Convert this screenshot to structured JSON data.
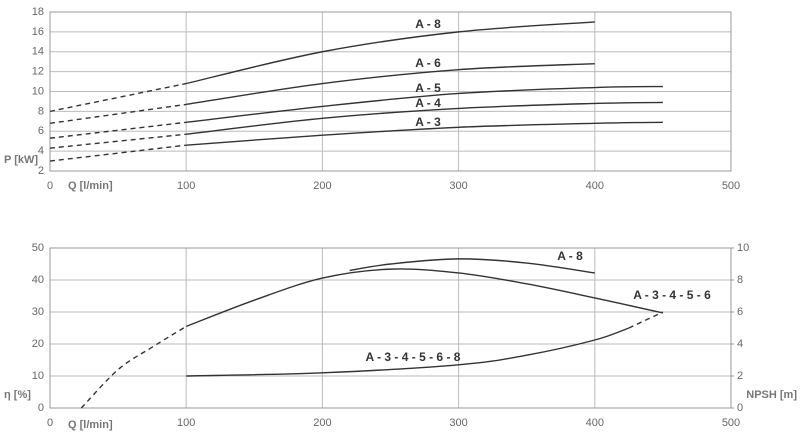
{
  "chart_data": [
    {
      "type": "line",
      "xlabel": "Q [l/min]",
      "ylabel": "P [kW]",
      "xlim": [
        0,
        500
      ],
      "xticks": [
        0,
        100,
        200,
        300,
        400,
        500
      ],
      "ylim": [
        2,
        18
      ],
      "yticks": [
        2,
        4,
        6,
        8,
        10,
        12,
        14,
        16,
        18
      ],
      "grid": true,
      "color": "#333333",
      "series": [
        {
          "dashed": true,
          "x": [
            0,
            100
          ],
          "values": [
            8.0,
            10.8
          ]
        },
        {
          "name": "A - 8",
          "x": [
            100,
            200,
            300,
            400
          ],
          "values": [
            10.8,
            14.0,
            16.0,
            17.0
          ]
        },
        {
          "dashed": true,
          "x": [
            0,
            100
          ],
          "values": [
            6.8,
            8.7
          ]
        },
        {
          "name": "A - 6",
          "x": [
            100,
            200,
            300,
            400
          ],
          "values": [
            8.7,
            10.8,
            12.2,
            12.8
          ]
        },
        {
          "dashed": true,
          "x": [
            0,
            100
          ],
          "values": [
            5.3,
            6.9
          ]
        },
        {
          "name": "A - 5",
          "x": [
            100,
            200,
            300,
            400,
            450
          ],
          "values": [
            6.9,
            8.5,
            9.8,
            10.4,
            10.5
          ]
        },
        {
          "dashed": true,
          "x": [
            0,
            100
          ],
          "values": [
            4.3,
            5.7
          ]
        },
        {
          "name": "A - 4",
          "x": [
            100,
            200,
            300,
            400,
            450
          ],
          "values": [
            5.7,
            7.3,
            8.3,
            8.8,
            8.9
          ]
        },
        {
          "dashed": true,
          "x": [
            0,
            100
          ],
          "values": [
            3.0,
            4.6
          ]
        },
        {
          "name": "A - 3",
          "x": [
            100,
            200,
            300,
            400,
            450
          ],
          "values": [
            4.6,
            5.6,
            6.4,
            6.8,
            6.9
          ]
        }
      ]
    },
    {
      "type": "line",
      "xlabel": "Q [l/min]",
      "ylabel": "η [%]",
      "y2label": "NPSH [m]",
      "xlim": [
        0,
        500
      ],
      "xticks": [
        0,
        100,
        200,
        300,
        400,
        500
      ],
      "ylim": [
        0,
        50
      ],
      "yticks": [
        0,
        10,
        20,
        30,
        40,
        50
      ],
      "y2lim": [
        0,
        10
      ],
      "y2ticks": [
        0,
        2,
        4,
        6,
        8,
        10
      ],
      "grid": true,
      "color": "#333333",
      "series": [
        {
          "dashed": true,
          "x": [
            23,
            50,
            75,
            100
          ],
          "values": [
            0,
            12,
            19,
            25.5
          ]
        },
        {
          "name": "A - 3 - 4 - 5 - 6",
          "x": [
            100,
            150,
            200,
            250,
            300,
            350,
            400,
            450
          ],
          "values": [
            25.5,
            33.7,
            40.6,
            43.4,
            42.2,
            38.8,
            34.4,
            29.7
          ]
        },
        {
          "name": "A - 8",
          "x": [
            220,
            250,
            300,
            350,
            400
          ],
          "values": [
            43,
            45,
            46.6,
            45.3,
            42.2
          ]
        },
        {
          "name": "A - 3 - 4 - 5 - 6 - 8",
          "axis": "y2",
          "x": [
            100,
            200,
            300,
            350,
            400,
            425
          ],
          "values": [
            2.0,
            2.2,
            2.7,
            3.3,
            4.25,
            5.0
          ]
        },
        {
          "dashed": true,
          "axis": "y2",
          "x": [
            425,
            450
          ],
          "values": [
            5.0,
            6.0
          ]
        }
      ]
    }
  ]
}
